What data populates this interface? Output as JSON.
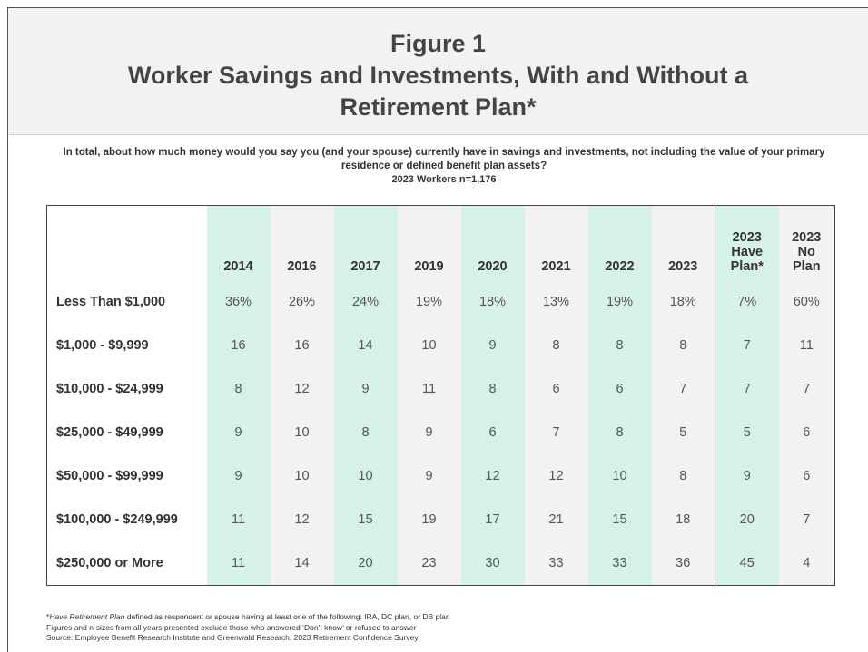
{
  "header": {
    "figure": "Figure 1",
    "title": "Worker Savings and Investments, With and Without a Retirement Plan*"
  },
  "question": "In total, about how much money would you say you (and your spouse) currently have in savings and investments, not including the value of your primary residence or defined benefit plan assets?",
  "sample": "2023 Workers n=1,176",
  "table": {
    "columns": [
      "2014",
      "2016",
      "2017",
      "2019",
      "2020",
      "2021",
      "2022",
      "2023",
      "2023 Have Plan*",
      "2023 No Plan"
    ],
    "rows": [
      {
        "label": "Less Than $1,000",
        "values": [
          "36%",
          "26%",
          "24%",
          "19%",
          "18%",
          "13%",
          "19%",
          "18%",
          "7%",
          "60%"
        ]
      },
      {
        "label": "$1,000 - $9,999",
        "values": [
          16,
          16,
          14,
          10,
          9,
          8,
          8,
          8,
          7,
          11
        ]
      },
      {
        "label": "$10,000 - $24,999",
        "values": [
          8,
          12,
          9,
          11,
          8,
          6,
          6,
          7,
          7,
          7
        ]
      },
      {
        "label": "$25,000 - $49,999",
        "values": [
          9,
          10,
          8,
          9,
          6,
          7,
          8,
          5,
          5,
          6
        ]
      },
      {
        "label": "$50,000 - $99,999",
        "values": [
          9,
          10,
          10,
          9,
          12,
          12,
          10,
          8,
          9,
          6
        ]
      },
      {
        "label": "$100,000 - $249,999",
        "values": [
          11,
          12,
          15,
          19,
          17,
          21,
          15,
          18,
          20,
          7
        ]
      },
      {
        "label": "$250,000 or More",
        "values": [
          11,
          14,
          20,
          23,
          30,
          33,
          33,
          36,
          45,
          4
        ]
      }
    ]
  },
  "footnotes": {
    "note_prefix": "*",
    "note_italic": "Have Retirement Plan",
    "note_rest": " defined as respondent or spouse having at least one of the following: IRA, DC plan, or DB plan",
    "lines": [
      "Figures and n-sizes from all years presented exclude those who answered ‘Don’t know’ or refused to answer",
      "Source: Employee Benefit Research Institute and Greenwald Research, 2023 Retirement Confidence Survey."
    ]
  }
}
